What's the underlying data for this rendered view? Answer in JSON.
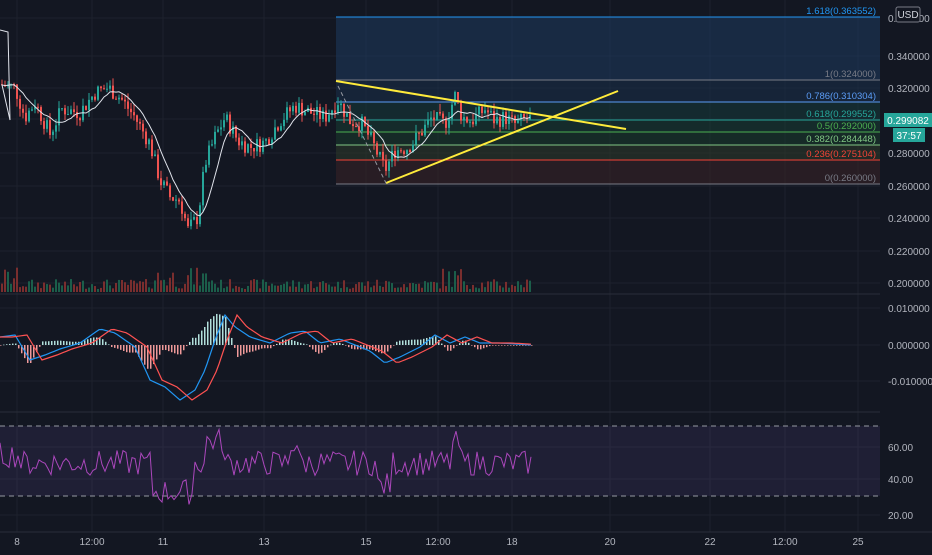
{
  "header": {
    "currency": "USD"
  },
  "price_axis": {
    "ticks": [
      "0.360000",
      "0.340000",
      "0.320000",
      "0.300000",
      "0.280000",
      "0.260000",
      "0.240000",
      "0.220000",
      "0.200000"
    ],
    "current_price": "0.299082",
    "countdown": "37:57",
    "current_color": "#26a69a"
  },
  "macd_axis": {
    "ticks": [
      "0.010000",
      "0.000000",
      "-0.010000"
    ]
  },
  "rsi_axis": {
    "ticks": [
      "60.00",
      "40.00",
      "20.00"
    ]
  },
  "time_axis": {
    "ticks": [
      "8",
      "12:00",
      "11",
      "13",
      "15",
      "12:00",
      "18",
      "20",
      "22",
      "12:00",
      "25"
    ]
  },
  "fib_levels": [
    {
      "label": "1.618(0.363552)",
      "price": 0.363552,
      "color": "#2196f3"
    },
    {
      "label": "1(0.324000)",
      "price": 0.324,
      "color": "#787b86"
    },
    {
      "label": "0.786(0.310304)",
      "price": 0.310304,
      "color": "#5b9cf6"
    },
    {
      "label": "0.618(0.299552)",
      "price": 0.299552,
      "color": "#26a69a"
    },
    {
      "label": "0.5(0.292000)",
      "price": 0.292,
      "color": "#4caf50"
    },
    {
      "label": "0.382(0.284448)",
      "price": 0.284448,
      "color": "#81c784"
    },
    {
      "label": "0.236(0.275104)",
      "price": 0.275104,
      "color": "#f44336"
    },
    {
      "label": "0(0.260000)",
      "price": 0.26,
      "color": "#787b86"
    }
  ],
  "chart_data": [
    {
      "type": "candlestick",
      "title": "",
      "ylim": [
        0.19,
        0.37
      ],
      "x_labels": [
        "8",
        "12:00",
        "11",
        "13",
        "15",
        "12:00",
        "18",
        "20",
        "22",
        "12:00",
        "25"
      ],
      "approx_close_path": [
        {
          "x": "8",
          "y": 0.318
        },
        {
          "x": "12:00",
          "y": 0.305
        },
        {
          "x": "12:00",
          "y": 0.313
        },
        {
          "x": "11",
          "y": 0.232
        },
        {
          "x": "11",
          "y": 0.272
        },
        {
          "x": "13",
          "y": 0.292
        },
        {
          "x": "13",
          "y": 0.303
        },
        {
          "x": "15",
          "y": 0.3
        },
        {
          "x": "15",
          "y": 0.262
        },
        {
          "x": "12:00",
          "y": 0.308
        },
        {
          "x": "18",
          "y": 0.299
        }
      ],
      "moving_average": "white",
      "trendlines": [
        {
          "name": "descending",
          "from": [
            0.324
          ],
          "to": [
            0.296
          ]
        },
        {
          "name": "ascending",
          "from": [
            0.26
          ],
          "to": [
            0.318
          ]
        }
      ],
      "volume_bars": true
    },
    {
      "type": "line",
      "title": "",
      "ylim": [
        -0.015,
        0.012
      ],
      "series": [
        {
          "name": "MACD",
          "color": "#2196f3"
        },
        {
          "name": "Signal",
          "color": "#ff5252"
        }
      ],
      "histogram": true
    },
    {
      "type": "line",
      "title": "",
      "ylim": [
        18,
        72
      ],
      "bands": [
        70,
        30
      ],
      "series": [
        {
          "name": "RSI",
          "color": "#9c27b0",
          "approx_last": 49
        }
      ]
    }
  ]
}
